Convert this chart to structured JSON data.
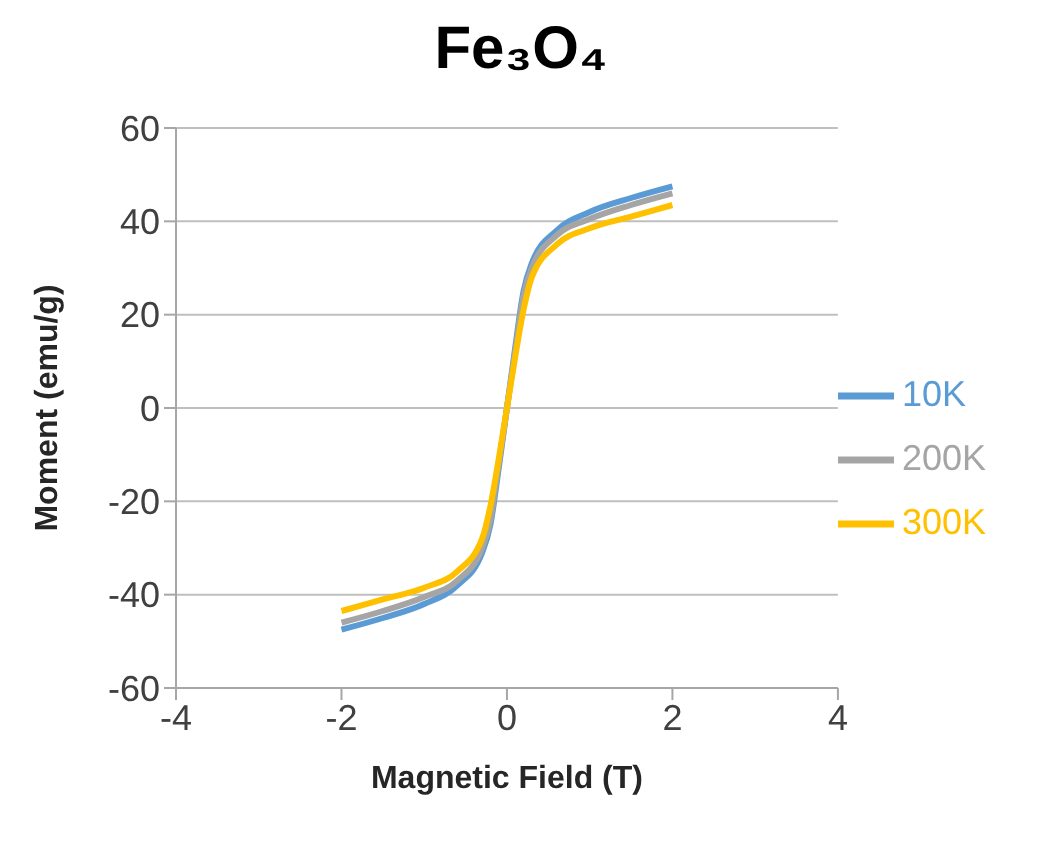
{
  "chart_data": {
    "type": "line",
    "title": "Fe₃O₄",
    "xlabel": "Magnetic Field (T)",
    "ylabel": "Moment (emu/g)",
    "xlim": [
      -4,
      4
    ],
    "xticks": [
      -4,
      -2,
      0,
      2,
      4
    ],
    "ylim": [
      -60,
      60
    ],
    "yticks": [
      -60,
      -40,
      -20,
      0,
      20,
      40,
      60
    ],
    "grid": "y",
    "legend": "right",
    "marker": "none",
    "line_style": "solid",
    "x": [
      -2,
      -1.5,
      -1,
      -0.6,
      -0.3,
      -0.2,
      -0.1,
      0,
      0.1,
      0.2,
      0.3,
      0.6,
      1,
      1.5,
      2
    ],
    "series": [
      {
        "name": "10K",
        "color": "#5b9bd5",
        "values": [
          -47.5,
          -45,
          -42,
          -38,
          -31,
          -25,
          -13,
          0,
          13,
          25,
          31,
          38,
          42,
          45,
          47.5
        ]
      },
      {
        "name": "200K",
        "color": "#a5a5a5",
        "values": [
          -46,
          -43.5,
          -40.5,
          -37,
          -30,
          -24,
          -12,
          0,
          12,
          24,
          30,
          37,
          40.5,
          43.5,
          46
        ]
      },
      {
        "name": "300K",
        "color": "#ffc000",
        "values": [
          -43.5,
          -41,
          -38.5,
          -35,
          -28,
          -21,
          -11,
          0,
          11,
          21,
          28,
          35,
          38.5,
          41,
          43.5
        ]
      }
    ]
  }
}
